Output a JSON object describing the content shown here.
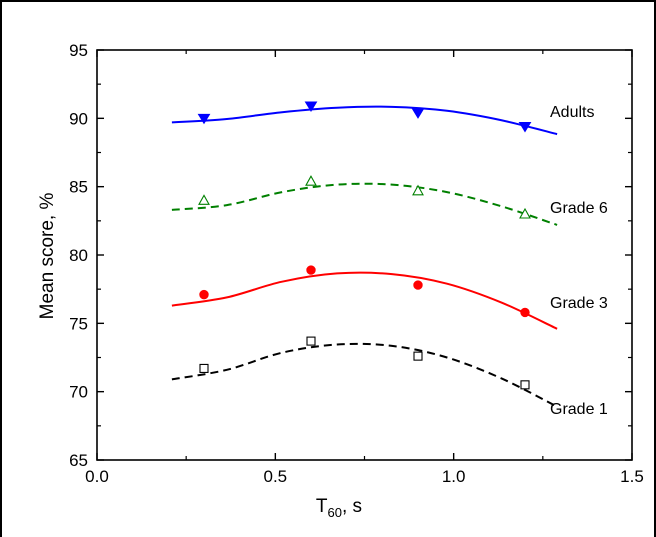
{
  "chart_data": {
    "type": "scatter",
    "xlabel_main": "T",
    "xlabel_sub": "60",
    "xlabel_suffix": ", s",
    "ylabel": "Mean score, %",
    "xlim": [
      0.0,
      1.5
    ],
    "ylim": [
      65,
      95
    ],
    "xticks": [
      0.0,
      0.5,
      1.0,
      1.5
    ],
    "xtick_labels": [
      "0.0",
      "0.5",
      "1.0",
      "1.5"
    ],
    "yticks": [
      65,
      70,
      75,
      80,
      85,
      90,
      95
    ],
    "ytick_labels": [
      "65",
      "70",
      "75",
      "80",
      "85",
      "90",
      "95"
    ],
    "grid": false,
    "series": [
      {
        "name": "Adults",
        "color": "#0000ff",
        "marker": "filled-down-triangle",
        "line": "solid",
        "x": [
          0.3,
          0.6,
          0.9,
          1.2
        ],
        "y": [
          90.0,
          90.9,
          90.4,
          89.4
        ],
        "fit_x_range": [
          0.21,
          1.29
        ],
        "fit_y": [
          89.7,
          89.95,
          90.45,
          90.78,
          90.84,
          90.55,
          89.85,
          88.85
        ]
      },
      {
        "name": "Grade 6",
        "color": "#008000",
        "marker": "open-up-triangle",
        "line": "dashed",
        "x": [
          0.3,
          0.6,
          0.9,
          1.2
        ],
        "y": [
          84.0,
          85.4,
          84.7,
          83.0
        ],
        "fit_x_range": [
          0.21,
          1.29
        ],
        "fit_y": [
          83.3,
          83.65,
          84.6,
          85.15,
          85.15,
          84.6,
          83.55,
          82.2
        ]
      },
      {
        "name": "Grade 3",
        "color": "#ff0000",
        "marker": "filled-circle",
        "line": "solid",
        "x": [
          0.3,
          0.6,
          0.9,
          1.2
        ],
        "y": [
          77.1,
          78.9,
          77.8,
          75.8
        ],
        "fit_x_range": [
          0.21,
          1.29
        ],
        "fit_y": [
          76.3,
          76.9,
          78.05,
          78.65,
          78.6,
          77.9,
          76.5,
          74.6
        ]
      },
      {
        "name": "Grade 1",
        "color": "#000000",
        "marker": "open-square",
        "line": "dashed",
        "x": [
          0.3,
          0.6,
          0.9,
          1.2
        ],
        "y": [
          71.7,
          73.7,
          72.6,
          70.5
        ],
        "fit_x_range": [
          0.21,
          1.29
        ],
        "fit_y": [
          70.9,
          71.6,
          72.85,
          73.45,
          73.35,
          72.5,
          70.95,
          68.9
        ]
      }
    ]
  }
}
